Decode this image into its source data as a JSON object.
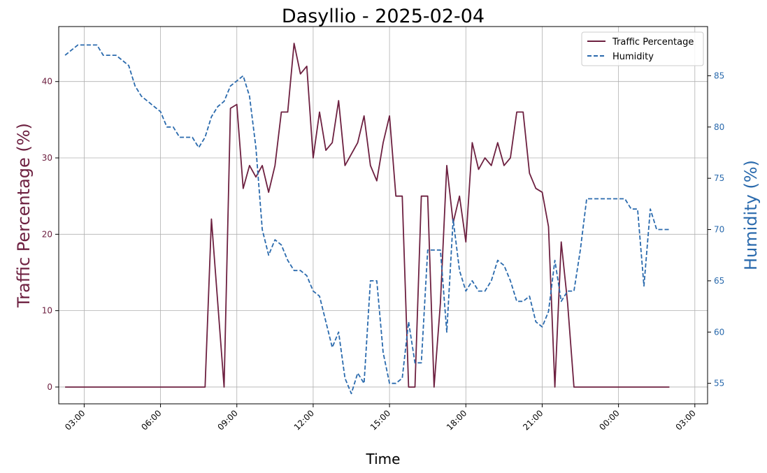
{
  "chart_data": {
    "type": "line",
    "title": "Dasyllio - 2025-02-04",
    "xlabel": "Time",
    "ylabel_left": "Traffic Percentage (%)",
    "ylabel_right": "Humidity (%)",
    "x_range": [
      "2025-02-04 02:00",
      "2025-02-05 03:30"
    ],
    "y_left_range": [
      -2.2,
      47.2
    ],
    "y_right_range": [
      53.0,
      89.8
    ],
    "x_ticks": [
      "03:00",
      "06:00",
      "09:00",
      "12:00",
      "15:00",
      "18:00",
      "21:00",
      "00:00",
      "03:00"
    ],
    "x_tick_times": [
      "2025-02-04 03:00",
      "2025-02-04 06:00",
      "2025-02-04 09:00",
      "2025-02-04 12:00",
      "2025-02-04 15:00",
      "2025-02-04 18:00",
      "2025-02-04 21:00",
      "2025-02-05 00:00",
      "2025-02-05 03:00"
    ],
    "y_left_ticks": [
      0,
      10,
      20,
      30,
      40
    ],
    "y_right_ticks": [
      55,
      60,
      65,
      70,
      75,
      80,
      85
    ],
    "grid": true,
    "legend_position": "top-right",
    "colors": {
      "traffic": "#6d2040",
      "humidity": "#2a6aad"
    },
    "series": [
      {
        "name": "Traffic Percentage",
        "axis": "left",
        "style": "solid",
        "times": [
          "2025-02-04 02:15",
          "2025-02-04 07:45",
          "2025-02-04 08:00",
          "2025-02-04 08:30",
          "2025-02-04 08:45",
          "2025-02-04 09:00",
          "2025-02-04 09:15",
          "2025-02-04 09:30",
          "2025-02-04 09:45",
          "2025-02-04 10:00",
          "2025-02-04 10:15",
          "2025-02-04 10:30",
          "2025-02-04 10:45",
          "2025-02-04 11:00",
          "2025-02-04 11:15",
          "2025-02-04 11:30",
          "2025-02-04 11:45",
          "2025-02-04 12:00",
          "2025-02-04 12:15",
          "2025-02-04 12:30",
          "2025-02-04 12:45",
          "2025-02-04 13:00",
          "2025-02-04 13:15",
          "2025-02-04 13:45",
          "2025-02-04 14:00",
          "2025-02-04 14:15",
          "2025-02-04 14:30",
          "2025-02-04 14:45",
          "2025-02-04 15:00",
          "2025-02-04 15:15",
          "2025-02-04 15:30",
          "2025-02-04 15:45",
          "2025-02-04 16:00",
          "2025-02-04 16:15",
          "2025-02-04 16:30",
          "2025-02-04 16:45",
          "2025-02-04 17:00",
          "2025-02-04 17:15",
          "2025-02-04 17:30",
          "2025-02-04 17:45",
          "2025-02-04 18:00",
          "2025-02-04 18:15",
          "2025-02-04 18:30",
          "2025-02-04 18:45",
          "2025-02-04 19:00",
          "2025-02-04 19:15",
          "2025-02-04 19:30",
          "2025-02-04 19:45",
          "2025-02-04 20:00",
          "2025-02-04 20:15",
          "2025-02-04 20:30",
          "2025-02-04 20:45",
          "2025-02-04 21:00",
          "2025-02-04 21:15",
          "2025-02-04 21:30",
          "2025-02-04 21:45",
          "2025-02-04 22:00",
          "2025-02-04 22:15",
          "2025-02-04 22:30",
          "2025-02-05 02:00"
        ],
        "values": [
          0,
          0,
          22,
          0,
          36.5,
          37,
          26,
          29,
          27.5,
          29,
          25.5,
          29,
          36,
          36,
          45,
          41,
          42,
          30,
          36,
          31,
          32,
          37.5,
          29,
          32,
          35.5,
          29,
          27,
          32,
          35.5,
          25,
          25,
          0,
          0,
          25,
          25,
          0,
          11,
          29,
          21.5,
          25,
          19,
          32,
          28.5,
          30,
          29,
          32,
          29,
          30,
          36,
          36,
          28,
          26,
          25.5,
          21,
          0,
          19,
          11,
          0,
          0,
          0
        ]
      },
      {
        "name": "Humidity",
        "axis": "right",
        "style": "dashed",
        "times": [
          "2025-02-04 02:15",
          "2025-02-04 02:30",
          "2025-02-04 02:45",
          "2025-02-04 03:00",
          "2025-02-04 03:15",
          "2025-02-04 03:30",
          "2025-02-04 03:45",
          "2025-02-04 04:00",
          "2025-02-04 04:15",
          "2025-02-04 04:30",
          "2025-02-04 04:45",
          "2025-02-04 05:00",
          "2025-02-04 05:15",
          "2025-02-04 05:30",
          "2025-02-04 05:45",
          "2025-02-04 06:00",
          "2025-02-04 06:15",
          "2025-02-04 06:30",
          "2025-02-04 06:45",
          "2025-02-04 07:00",
          "2025-02-04 07:15",
          "2025-02-04 07:30",
          "2025-02-04 07:45",
          "2025-02-04 08:00",
          "2025-02-04 08:15",
          "2025-02-04 08:30",
          "2025-02-04 08:45",
          "2025-02-04 09:00",
          "2025-02-04 09:15",
          "2025-02-04 09:30",
          "2025-02-04 09:45",
          "2025-02-04 10:00",
          "2025-02-04 10:15",
          "2025-02-04 10:30",
          "2025-02-04 10:45",
          "2025-02-04 11:00",
          "2025-02-04 11:15",
          "2025-02-04 11:30",
          "2025-02-04 11:45",
          "2025-02-04 12:00",
          "2025-02-04 12:15",
          "2025-02-04 12:30",
          "2025-02-04 12:45",
          "2025-02-04 13:00",
          "2025-02-04 13:15",
          "2025-02-04 13:30",
          "2025-02-04 13:45",
          "2025-02-04 14:00",
          "2025-02-04 14:15",
          "2025-02-04 14:30",
          "2025-02-04 14:45",
          "2025-02-04 15:00",
          "2025-02-04 15:15",
          "2025-02-04 15:30",
          "2025-02-04 15:45",
          "2025-02-04 16:00",
          "2025-02-04 16:15",
          "2025-02-04 16:30",
          "2025-02-04 16:45",
          "2025-02-04 17:00",
          "2025-02-04 17:15",
          "2025-02-04 17:30",
          "2025-02-04 17:45",
          "2025-02-04 18:00",
          "2025-02-04 18:15",
          "2025-02-04 18:30",
          "2025-02-04 18:45",
          "2025-02-04 19:00",
          "2025-02-04 19:15",
          "2025-02-04 19:30",
          "2025-02-04 19:45",
          "2025-02-04 20:00",
          "2025-02-04 20:15",
          "2025-02-04 20:30",
          "2025-02-04 20:45",
          "2025-02-04 21:00",
          "2025-02-04 21:15",
          "2025-02-04 21:30",
          "2025-02-04 21:45",
          "2025-02-04 22:00",
          "2025-02-04 22:15",
          "2025-02-04 22:30",
          "2025-02-04 22:45",
          "2025-02-04 23:00",
          "2025-02-04 23:15",
          "2025-02-04 23:30",
          "2025-02-04 23:45",
          "2025-02-05 00:00",
          "2025-02-05 00:15",
          "2025-02-05 00:30",
          "2025-02-05 00:45",
          "2025-02-05 01:00",
          "2025-02-05 01:15",
          "2025-02-05 01:30",
          "2025-02-05 01:45",
          "2025-02-05 02:00"
        ],
        "values": [
          87,
          87.5,
          88,
          88,
          88,
          88,
          87,
          87,
          87,
          86.5,
          86,
          84,
          83,
          82.5,
          82,
          81.5,
          80,
          80,
          79,
          79,
          79,
          78,
          79,
          81,
          82,
          82.5,
          84,
          84.5,
          85,
          83,
          78,
          70,
          67.5,
          69,
          68.5,
          67,
          66,
          66,
          65.5,
          64,
          63.5,
          61,
          58.5,
          60,
          55.5,
          54,
          56,
          55,
          65,
          65,
          58,
          55,
          55,
          55.5,
          61,
          57,
          57,
          68,
          68,
          68,
          60,
          71,
          66,
          64,
          65,
          64,
          64,
          65,
          67,
          66.5,
          65,
          63,
          63,
          63.5,
          61,
          60.5,
          62,
          67,
          63,
          64,
          64,
          68,
          73,
          73,
          73,
          73,
          73,
          73,
          73,
          72,
          72,
          64.5,
          72,
          70,
          70,
          70
        ]
      }
    ]
  }
}
